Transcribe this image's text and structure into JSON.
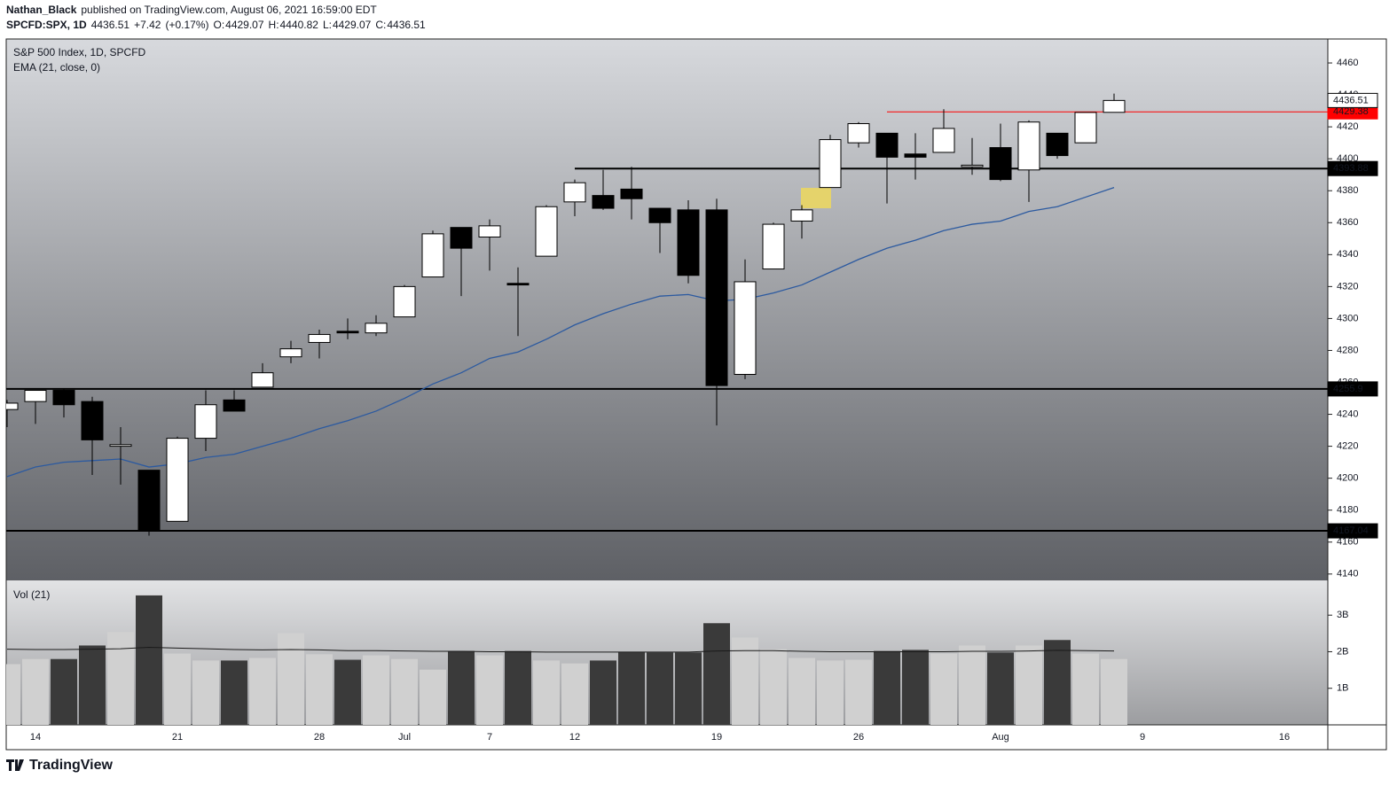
{
  "header": {
    "author": "Nathan_Black",
    "published": "published on TradingView.com, August 06, 2021 16:59:00 EDT",
    "symbol": "SPCFD:SPX, 1D",
    "change": "+7.42",
    "change_pct": "(+0.17%)",
    "o_label": "O:",
    "h_label": "H:",
    "l_label": "L:",
    "c_label": "C:"
  },
  "footer": {
    "brand": "TradingView"
  },
  "chart_data": {
    "type": "candlestick",
    "title": "S&P 500 Index, 1D, SPCFD",
    "categories": [
      null,
      "14",
      null,
      null,
      null,
      null,
      "21",
      null,
      null,
      null,
      null,
      "28",
      null,
      null,
      "Jul",
      null,
      null,
      "7",
      null,
      null,
      "12",
      null,
      null,
      null,
      null,
      "19",
      null,
      null,
      null,
      null,
      "26",
      null,
      null,
      null,
      null,
      "Aug",
      null,
      null,
      null,
      null,
      "9",
      null,
      null,
      null,
      null,
      "16",
      null
    ],
    "open": [
      4243,
      4248,
      4255,
      4248,
      4220,
      4205,
      4173,
      4225,
      4249,
      4257,
      4276,
      4285,
      4292,
      4291,
      4301,
      4326,
      4357,
      4351,
      4322,
      4339,
      4373,
      4377,
      4381,
      4369,
      4368,
      4368,
      4265,
      4331,
      4361,
      4382,
      4410,
      4416,
      4403,
      4404,
      4395,
      4407,
      4393,
      4416,
      4410,
      4429.07,
      null,
      null,
      null,
      null,
      null,
      null,
      null
    ],
    "high": [
      4249,
      4255,
      4256,
      4251,
      4232,
      4205,
      4226,
      4255,
      4255,
      4272,
      4286,
      4293,
      4300,
      4302,
      4321,
      4355,
      4357,
      4362,
      4332,
      4371,
      4387,
      4393,
      4395,
      4369,
      4374,
      4375,
      4337,
      4360,
      4371,
      4415,
      4423,
      4416,
      4416,
      4431,
      4413,
      4422,
      4424,
      4416,
      4429,
      4440.82,
      null,
      null,
      null,
      null,
      null,
      null,
      null
    ],
    "low": [
      4232,
      4234,
      4238,
      4202,
      4196,
      4164,
      4173,
      4217,
      4242,
      4257,
      4272,
      4275,
      4287,
      4289,
      4301,
      4326,
      4314,
      4330,
      4289,
      4339,
      4364,
      4368,
      4362,
      4341,
      4322,
      4233,
      4262,
      4331,
      4350,
      4382,
      4407,
      4372,
      4387,
      4404,
      4390,
      4386,
      4373,
      4400,
      4410,
      4429.07,
      null,
      null,
      null,
      null,
      null,
      null,
      null
    ],
    "close": [
      4247,
      4255,
      4246,
      4224,
      4221,
      4167,
      4225,
      4246,
      4242,
      4266,
      4281,
      4290,
      4291,
      4297,
      4320,
      4353,
      4344,
      4358,
      4321,
      4370,
      4385,
      4369,
      4375,
      4360,
      4327,
      4258,
      4323,
      4359,
      4368,
      4412,
      4422,
      4401,
      4401,
      4419,
      4396,
      4387,
      4423,
      4402,
      4429,
      4436.51,
      null,
      null,
      null,
      null,
      null,
      null,
      null
    ],
    "up_color": "#ffffff",
    "down_color": "#000000",
    "ema": {
      "name": "EMA (21, close, 0)",
      "color": "#2c5aa0",
      "values": [
        4201,
        4207,
        4210,
        4211,
        4212,
        4207,
        4209,
        4213,
        4215,
        4220,
        4225,
        4231,
        4236,
        4242,
        4250,
        4259,
        4266,
        4275,
        4279,
        4287,
        4296,
        4303,
        4309,
        4314,
        4315,
        4311,
        4312,
        4316,
        4321,
        4329,
        4337,
        4344,
        4349,
        4355,
        4359,
        4361,
        4367,
        4370,
        4376,
        4382,
        null,
        null,
        null,
        null,
        null,
        null,
        null
      ]
    },
    "levels": [
      {
        "value": 4429.38,
        "color": "#ff0000"
      },
      {
        "value": 4393.88,
        "color": "#000000"
      },
      {
        "value": 4255.9,
        "color": "#000000"
      },
      {
        "value": 4167.04,
        "color": "#000000"
      }
    ],
    "ylim": [
      4136,
      4475
    ],
    "yticks": [
      4140,
      4160,
      4180,
      4200,
      4220,
      4240,
      4260,
      4280,
      4300,
      4320,
      4340,
      4360,
      4380,
      4400,
      4420,
      4440,
      4460
    ],
    "volume": {
      "name": "Vol (21)",
      "up_color": "#d0d0d0",
      "down_color": "#3a3a3a",
      "ma_color": "#1a1a1a",
      "values": [
        1660000000,
        1800000000,
        1800000000,
        2170000000,
        2540000000,
        3540000000,
        1950000000,
        1760000000,
        1760000000,
        1830000000,
        2510000000,
        1930000000,
        1780000000,
        1900000000,
        1800000000,
        1510000000,
        2020000000,
        1900000000,
        2020000000,
        1760000000,
        1680000000,
        1760000000,
        2000000000,
        1980000000,
        1980000000,
        2780000000,
        2390000000,
        2070000000,
        1830000000,
        1760000000,
        1780000000,
        2020000000,
        2050000000,
        1950000000,
        2170000000,
        1980000000,
        2170000000,
        2320000000,
        1950000000,
        1800000000,
        null,
        null,
        null,
        null,
        null,
        null,
        null
      ],
      "ma": [
        2070000000,
        2060000000,
        2060000000,
        2070000000,
        2080000000,
        2120000000,
        2100000000,
        2080000000,
        2060000000,
        2050000000,
        2060000000,
        2050000000,
        2030000000,
        2030000000,
        2020000000,
        2010000000,
        2010000000,
        2000000000,
        2000000000,
        1990000000,
        1990000000,
        1990000000,
        1990000000,
        1990000000,
        1990000000,
        2020000000,
        2030000000,
        2030000000,
        2010000000,
        2000000000,
        2000000000,
        2000000000,
        2000000000,
        2000000000,
        2010000000,
        2010000000,
        2020000000,
        2040000000,
        2030000000,
        2020000000,
        null,
        null,
        null,
        null,
        null,
        null,
        null
      ],
      "ylim": [
        0,
        3950000000
      ],
      "yticks": [
        {
          "value": 1000000000,
          "label": "1B"
        },
        {
          "value": 2000000000,
          "label": "2B"
        },
        {
          "value": 3000000000,
          "label": "3B"
        }
      ]
    }
  }
}
